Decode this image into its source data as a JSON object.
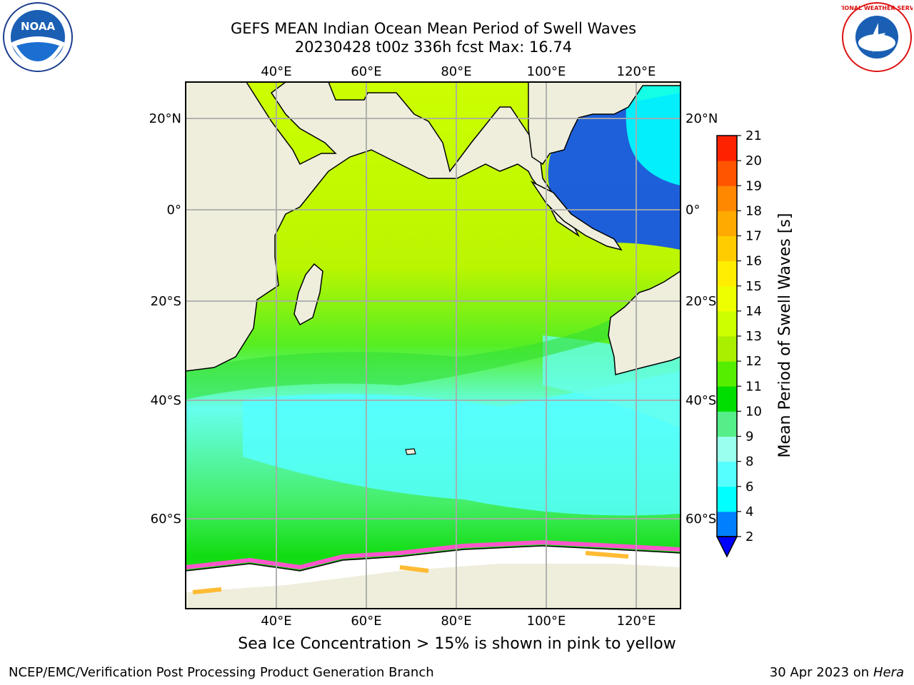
{
  "title": {
    "line1": "GEFS MEAN Indian Ocean Mean Period of Swell Waves",
    "line2": "20230428 t00z 336h fcst   Max: 16.74"
  },
  "logos": {
    "left": {
      "icon": "noaa-logo",
      "text": "NOAA"
    },
    "right": {
      "icon": "nws-logo",
      "text": "NATIONAL WEATHER SERVICE"
    }
  },
  "map": {
    "lon_ticks": [
      "40°E",
      "60°E",
      "80°E",
      "100°E",
      "120°E"
    ],
    "lat_ticks_left": [
      "20°N",
      "0°",
      "20°S",
      "40°S",
      "60°S"
    ],
    "lat_ticks_right": [
      "20°N",
      "0°",
      "20°S",
      "40°S",
      "60°S"
    ],
    "colors": {
      "land": "#efeedd",
      "ocean_low": "#00ffff",
      "ocean_mid": "#33e033",
      "ocean_high": "#ccff00",
      "ice": "#ff55cc",
      "grid": "#aaaaaa"
    }
  },
  "colorbar": {
    "label": "Mean Period of Swell Waves [s]",
    "ticks": [
      "21",
      "20",
      "19",
      "18",
      "17",
      "16",
      "15",
      "14",
      "13",
      "12",
      "11",
      "10",
      "9",
      "8",
      "6",
      "4",
      "2"
    ],
    "colors": [
      "#0000ff",
      "#0080ff",
      "#00ffff",
      "#55ffff",
      "#99ffee",
      "#55ee88",
      "#00dd00",
      "#55ee00",
      "#aaee00",
      "#ccff00",
      "#eeff00",
      "#ffee00",
      "#ffcc00",
      "#ffaa00",
      "#ff8800",
      "#ff5500",
      "#ff2200",
      "#ff0000"
    ]
  },
  "ice_note": "Sea Ice Concentration > 15% is shown in pink to yellow",
  "footer": {
    "left": "NCEP/EMC/Verification Post Processing Product Generation Branch",
    "right_date": "30 Apr 2023 on ",
    "right_host": "Hera"
  }
}
